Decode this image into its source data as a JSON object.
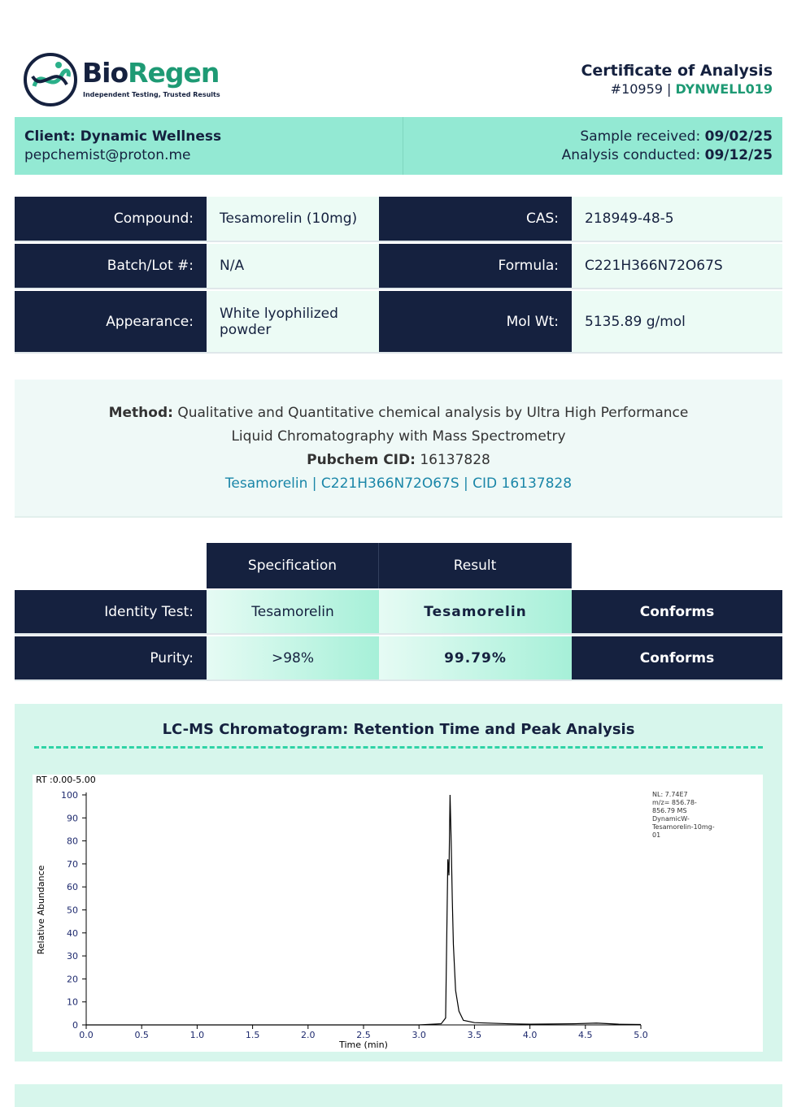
{
  "header": {
    "logo_part1": "Bio",
    "logo_part2": "Regen",
    "tagline": "Independent Testing, Trusted Results",
    "title": "Certificate of Analysis",
    "certificate_id": "#10959 |",
    "batch_code": "DYNWELL019"
  },
  "client": {
    "name": "Client: Dynamic Wellness",
    "email": "pepchemist@proton.me",
    "received_label": "Sample received:",
    "received_date": "09/02/25",
    "conducted_label": "Analysis conducted:",
    "conducted_date": "09/12/25"
  },
  "properties": {
    "rows": [
      [
        "Compound:",
        "Tesamorelin (10mg)",
        "CAS:",
        "218949-48-5"
      ],
      [
        "Batch/Lot #:",
        "N/A",
        "Formula:",
        "C221H366N72O67S"
      ],
      [
        "Appearance:",
        "White lyophilized powder",
        "Mol Wt:",
        "5135.89 g/mol"
      ]
    ]
  },
  "method": {
    "label": "Method:",
    "text": "Qualitative and Quantitative chemical analysis by Ultra High Performance Liquid Chromatography with Mass Spectrometry",
    "cid_label": "Pubchem CID:",
    "cid": "16137828",
    "link": "Tesamorelin | C221H366N72O67S | CID 16137828"
  },
  "results": {
    "headers": [
      "Specification",
      "Result"
    ],
    "rows": [
      [
        "Identity Test:",
        "Tesamorelin",
        "Tesamorelin",
        "Conforms"
      ],
      [
        "Purity:",
        ">98%",
        "99.79%",
        "Conforms"
      ]
    ]
  },
  "chromatogram": {
    "type": "line",
    "title": "LC-MS Chromatogram: Retention Time and Peak Analysis",
    "range_label": "RT :0.00-5.00",
    "annotation": [
      "NL: 7.74E7",
      "m/z= 856.78-",
      "856.79 MS",
      "DynamicW-",
      "Tesamorelin-10mg-",
      "01"
    ],
    "x_label": "Time (min)",
    "y_label": "Relative Abundance",
    "color": "#000000",
    "x": [
      0,
      1,
      2,
      3,
      3.2,
      3.24,
      3.26,
      3.27,
      3.28,
      3.29,
      3.3,
      3.31,
      3.33,
      3.36,
      3.4,
      3.5,
      3.8,
      4,
      4.4,
      4.6,
      4.8,
      5
    ],
    "values": [
      0,
      0,
      0,
      0,
      0.5,
      3,
      72,
      65,
      100,
      80,
      55,
      35,
      15,
      6,
      2,
      1,
      0.5,
      0.3,
      0.5,
      0.8,
      0.3,
      0.2
    ],
    "xlim": [
      0,
      5
    ],
    "ylim": [
      0,
      100
    ],
    "xticks": [
      {
        "value": 0,
        "label": "0.0"
      },
      0.5,
      {
        "value": 1,
        "label": "1.0"
      },
      1.5,
      {
        "value": 2,
        "label": "2.0"
      },
      2.5,
      {
        "value": 3,
        "label": "3.0"
      },
      3.5,
      {
        "value": 4,
        "label": "4.0"
      },
      4.5,
      {
        "value": 5,
        "label": "5.0"
      }
    ],
    "yticks": [
      0,
      10,
      20,
      30,
      40,
      50,
      60,
      70,
      80,
      90,
      100
    ]
  }
}
